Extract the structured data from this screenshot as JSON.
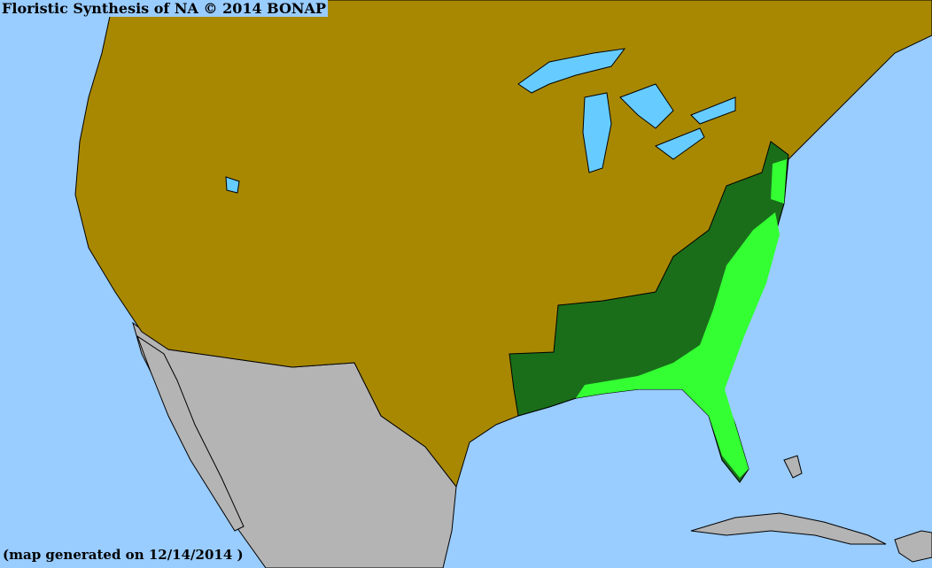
{
  "title": "Floristic Synthesis of NA © 2014 BONAP",
  "footer": "(map generated on 12/14/2014 )",
  "colors": {
    "ocean": "#99ccff",
    "lakes": "#66ccff",
    "not_present_region": "#a88800",
    "outside_region": "#b4b4b4",
    "present_state": "#1a6e1a",
    "present_county": "#33ff33",
    "borders": "#3a3a5a"
  }
}
